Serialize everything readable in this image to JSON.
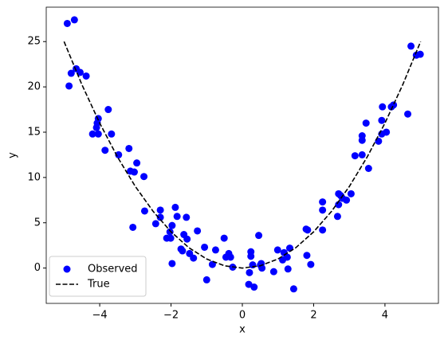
{
  "chart_data": {
    "type": "scatter",
    "xlabel": "x",
    "ylabel": "y",
    "xlim": [
      -5.5,
      5.5
    ],
    "ylim": [
      -3.9,
      28.8
    ],
    "xticks": [
      {
        "value": -4,
        "label": "−4"
      },
      {
        "value": -2,
        "label": "−2"
      },
      0,
      2,
      4
    ],
    "yticks": [
      0,
      5,
      10,
      15,
      20,
      25
    ],
    "legend": "lower left",
    "series": [
      {
        "name": "Observed",
        "type": "scatter",
        "color": "#0000ff",
        "x": [
          -4.91,
          -4.71,
          -4.86,
          -4.8,
          -4.66,
          -4.55,
          -4.38,
          -4.04,
          -4.07,
          -4.09,
          -4.2,
          -4.04,
          -3.76,
          -3.67,
          -3.85,
          -3.47,
          -3.18,
          -3.14,
          -3.03,
          -2.96,
          -2.76,
          -3.07,
          -2.74,
          -2.43,
          -2.3,
          -2.3,
          -2.12,
          -2.03,
          -2.01,
          -1.97,
          -1.97,
          -1.88,
          -1.83,
          -1.72,
          -1.68,
          -1.64,
          -1.57,
          -1.55,
          -1.48,
          -1.37,
          -1.26,
          -1.06,
          -1.0,
          -0.84,
          -0.75,
          -0.51,
          -0.46,
          -0.38,
          -0.33,
          -0.27,
          0.18,
          0.2,
          0.24,
          0.24,
          0.29,
          0.33,
          0.46,
          0.51,
          0.55,
          0.53,
          0.88,
          0.99,
          1.13,
          1.17,
          1.26,
          1.28,
          1.33,
          1.44,
          1.79,
          1.83,
          1.81,
          1.92,
          2.25,
          2.25,
          2.25,
          2.67,
          2.7,
          2.7,
          2.76,
          2.81,
          2.92,
          3.05,
          3.16,
          3.36,
          3.36,
          3.36,
          3.47,
          3.54,
          3.82,
          3.91,
          3.91,
          3.93,
          4.04,
          4.18,
          4.24,
          4.64,
          4.73,
          4.88,
          4.99
        ],
        "values": [
          27.0,
          27.4,
          20.1,
          21.5,
          22.0,
          21.6,
          21.2,
          16.5,
          16.0,
          15.5,
          14.8,
          14.8,
          17.5,
          14.8,
          13.0,
          12.5,
          13.2,
          10.7,
          10.6,
          11.6,
          10.1,
          4.5,
          6.3,
          4.9,
          6.4,
          5.6,
          3.3,
          4.0,
          3.3,
          4.7,
          0.5,
          6.7,
          5.7,
          2.1,
          1.9,
          3.7,
          5.6,
          3.2,
          1.6,
          1.1,
          4.1,
          2.3,
          -1.3,
          0.4,
          2.0,
          3.3,
          1.2,
          1.6,
          1.2,
          0.1,
          -1.8,
          -0.5,
          1.8,
          1.3,
          0.35,
          -2.1,
          3.6,
          0.35,
          0.0,
          0.5,
          -0.4,
          2.0,
          0.9,
          1.7,
          1.2,
          -0.1,
          2.2,
          -2.3,
          4.3,
          4.2,
          1.4,
          0.4,
          4.2,
          6.4,
          7.3,
          5.7,
          7.0,
          8.2,
          8.0,
          7.7,
          7.5,
          8.2,
          12.4,
          14.6,
          14.1,
          12.5,
          16.0,
          11.0,
          14.0,
          14.8,
          16.3,
          17.8,
          15.0,
          17.8,
          18.0,
          17.0,
          24.5,
          23.5,
          23.6
        ]
      },
      {
        "name": "True",
        "type": "line",
        "color": "#000000",
        "linestyle": "dashed",
        "x": [
          -5,
          -4.5,
          -4,
          -3.5,
          -3,
          -2.5,
          -2,
          -1.5,
          -1,
          -0.5,
          0,
          0.5,
          1,
          1.5,
          2,
          2.5,
          3,
          3.5,
          4,
          4.5,
          5
        ],
        "values": [
          25,
          20.25,
          16,
          12.25,
          9,
          6.25,
          4,
          2.25,
          1,
          0.25,
          0,
          0.25,
          1,
          2.25,
          4,
          6.25,
          9,
          12.25,
          16,
          20.25,
          25
        ]
      }
    ]
  }
}
